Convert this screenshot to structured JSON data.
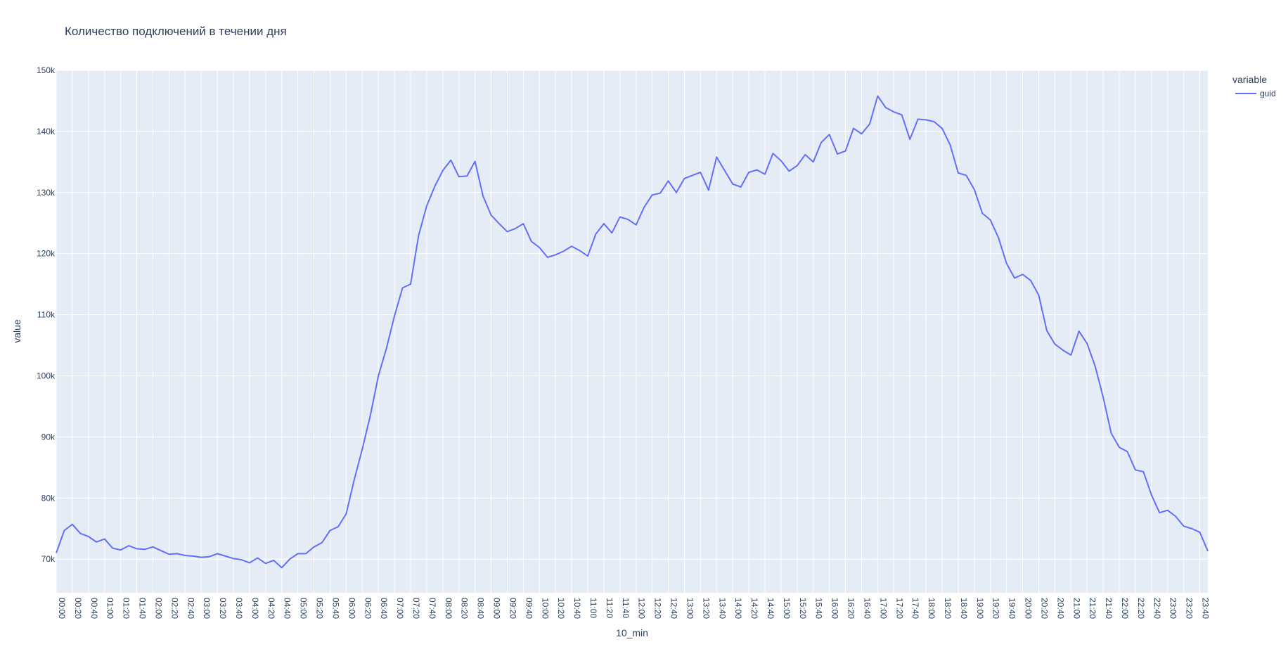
{
  "chart_data": {
    "type": "line",
    "title": "Количество подключений в течении дня",
    "xlabel": "10_min",
    "ylabel": "value",
    "ylim": [
      64500,
      150000
    ],
    "yticks": [
      70000,
      80000,
      90000,
      100000,
      110000,
      120000,
      130000,
      140000,
      150000
    ],
    "ytick_labels": [
      "70k",
      "80k",
      "90k",
      "100k",
      "110k",
      "120k",
      "130k",
      "140k",
      "150k"
    ],
    "x_tick_every": 2,
    "grid": true,
    "legend": {
      "title": "variable",
      "placement": "top-right"
    },
    "colors": {
      "plot_bg": "#e5ecf6",
      "grid": "#ffffff",
      "line": "#636efa",
      "text": "#2a3f5f"
    },
    "x": [
      "00:00",
      "00:10",
      "00:20",
      "00:30",
      "00:40",
      "00:50",
      "01:00",
      "01:10",
      "01:20",
      "01:30",
      "01:40",
      "01:50",
      "02:00",
      "02:10",
      "02:20",
      "02:30",
      "02:40",
      "02:50",
      "03:00",
      "03:10",
      "03:20",
      "03:30",
      "03:40",
      "03:50",
      "04:00",
      "04:10",
      "04:20",
      "04:30",
      "04:40",
      "04:50",
      "05:00",
      "05:10",
      "05:20",
      "05:30",
      "05:40",
      "05:50",
      "06:00",
      "06:10",
      "06:20",
      "06:30",
      "06:40",
      "06:50",
      "07:00",
      "07:10",
      "07:20",
      "07:30",
      "07:40",
      "07:50",
      "08:00",
      "08:10",
      "08:20",
      "08:30",
      "08:40",
      "08:50",
      "09:00",
      "09:10",
      "09:20",
      "09:30",
      "09:40",
      "09:50",
      "10:00",
      "10:10",
      "10:20",
      "10:30",
      "10:40",
      "10:50",
      "11:00",
      "11:10",
      "11:20",
      "11:30",
      "11:40",
      "11:50",
      "12:00",
      "12:10",
      "12:20",
      "12:30",
      "12:40",
      "12:50",
      "13:00",
      "13:10",
      "13:20",
      "13:30",
      "13:40",
      "13:50",
      "14:00",
      "14:10",
      "14:20",
      "14:30",
      "14:40",
      "14:50",
      "15:00",
      "15:10",
      "15:20",
      "15:30",
      "15:40",
      "15:50",
      "16:00",
      "16:10",
      "16:20",
      "16:30",
      "16:40",
      "16:50",
      "17:00",
      "17:10",
      "17:20",
      "17:30",
      "17:40",
      "17:50",
      "18:00",
      "18:10",
      "18:20",
      "18:30",
      "18:40",
      "18:50",
      "19:00",
      "19:10",
      "19:20",
      "19:30",
      "19:40",
      "19:50",
      "20:00",
      "20:10",
      "20:20",
      "20:30",
      "20:40",
      "20:50",
      "21:00",
      "21:10",
      "21:20",
      "21:30",
      "21:40",
      "21:50",
      "22:00",
      "22:10",
      "22:20",
      "22:30",
      "22:40",
      "22:50",
      "23:00",
      "23:10",
      "23:20",
      "23:30",
      "23:40",
      "23:50"
    ],
    "series": [
      {
        "name": "guid",
        "values": [
          71000,
          74700,
          75700,
          74200,
          73700,
          72800,
          73300,
          71800,
          71500,
          72200,
          71700,
          71600,
          72000,
          71400,
          70800,
          70900,
          70600,
          70500,
          70300,
          70400,
          70900,
          70500,
          70100,
          69900,
          69400,
          70200,
          69300,
          69800,
          68600,
          70000,
          70900,
          70900,
          72000,
          72700,
          74700,
          75300,
          77400,
          83000,
          88000,
          93500,
          100000,
          104500,
          109800,
          114400,
          115000,
          123000,
          127800,
          131000,
          133600,
          135300,
          132600,
          132700,
          135100,
          129400,
          126300,
          124900,
          123600,
          124100,
          124900,
          122000,
          121000,
          119400,
          119800,
          120400,
          121200,
          120500,
          119600,
          123200,
          124900,
          123400,
          126000,
          125600,
          124700,
          127600,
          129600,
          129900,
          131900,
          130000,
          132300,
          132800,
          133300,
          130400,
          135800,
          133600,
          131400,
          130900,
          133300,
          133700,
          133000,
          136400,
          135200,
          133500,
          134400,
          136200,
          135000,
          138200,
          139500,
          136300,
          136800,
          140500,
          139600,
          141200,
          145800,
          143900,
          143200,
          142700,
          138700,
          142000,
          141900,
          141600,
          140500,
          137800,
          133200,
          132800,
          130500,
          126600,
          125500,
          122600,
          118400,
          116000,
          116600,
          115600,
          113200,
          107400,
          105200,
          104200,
          103400,
          107300,
          105300,
          101600,
          96500,
          90600,
          88300,
          87600,
          84600,
          84300,
          80500,
          77600,
          78000,
          77000,
          75400,
          75000,
          74400,
          71300
        ]
      }
    ]
  }
}
